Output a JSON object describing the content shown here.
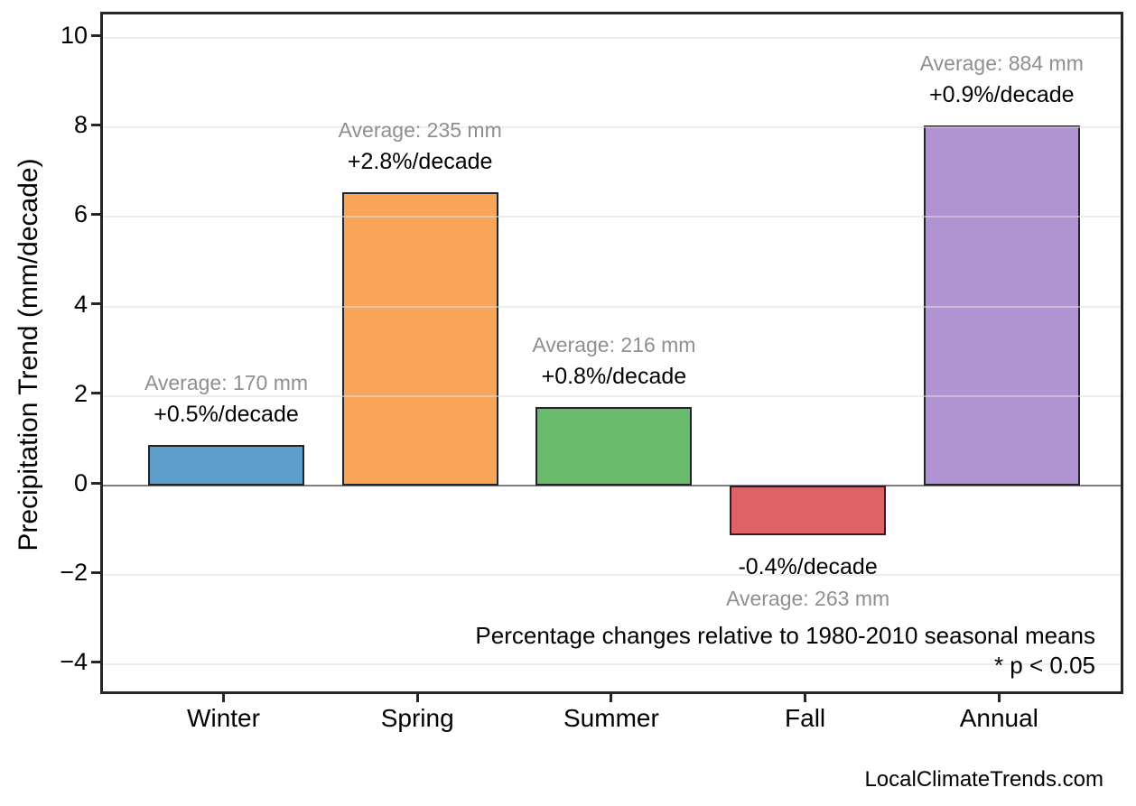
{
  "page": {
    "watermark": "LocalClimateTrends.com"
  },
  "chart_data": {
    "type": "bar",
    "title": "",
    "xlabel": "",
    "ylabel": "Precipitation Trend (mm/decade)",
    "categories": [
      "Winter",
      "Spring",
      "Summer",
      "Fall",
      "Annual"
    ],
    "values": [
      0.9,
      6.55,
      1.75,
      -1.1,
      8.05
    ],
    "units": "mm/decade",
    "bar_colors": [
      "#5C9DCA",
      "#FAA457",
      "#6ABB6B",
      "#DE6367",
      "#B192D3"
    ],
    "bar_edge_color": "#23232b",
    "annotations": [
      {
        "average": "Average: 170 mm",
        "trend": "+0.5%/decade"
      },
      {
        "average": "Average: 235 mm",
        "trend": "+2.8%/decade"
      },
      {
        "average": "Average: 216 mm",
        "trend": "+0.8%/decade"
      },
      {
        "average": "Average: 263 mm",
        "trend": "-0.4%/decade"
      },
      {
        "average": "Average: 884 mm",
        "trend": "+0.9%/decade"
      }
    ],
    "yticks": [
      -4,
      -2,
      0,
      2,
      4,
      6,
      8,
      10
    ],
    "ytick_labels": [
      "−4",
      "−2",
      "0",
      "2",
      "4",
      "6",
      "8",
      "10"
    ],
    "ylim": [
      -4.7,
      10.5
    ],
    "grid": "horizontal",
    "legend": "none",
    "footnote_line1": "Percentage changes relative to 1980-2010 seasonal means",
    "footnote_line2": "* p < 0.05"
  }
}
